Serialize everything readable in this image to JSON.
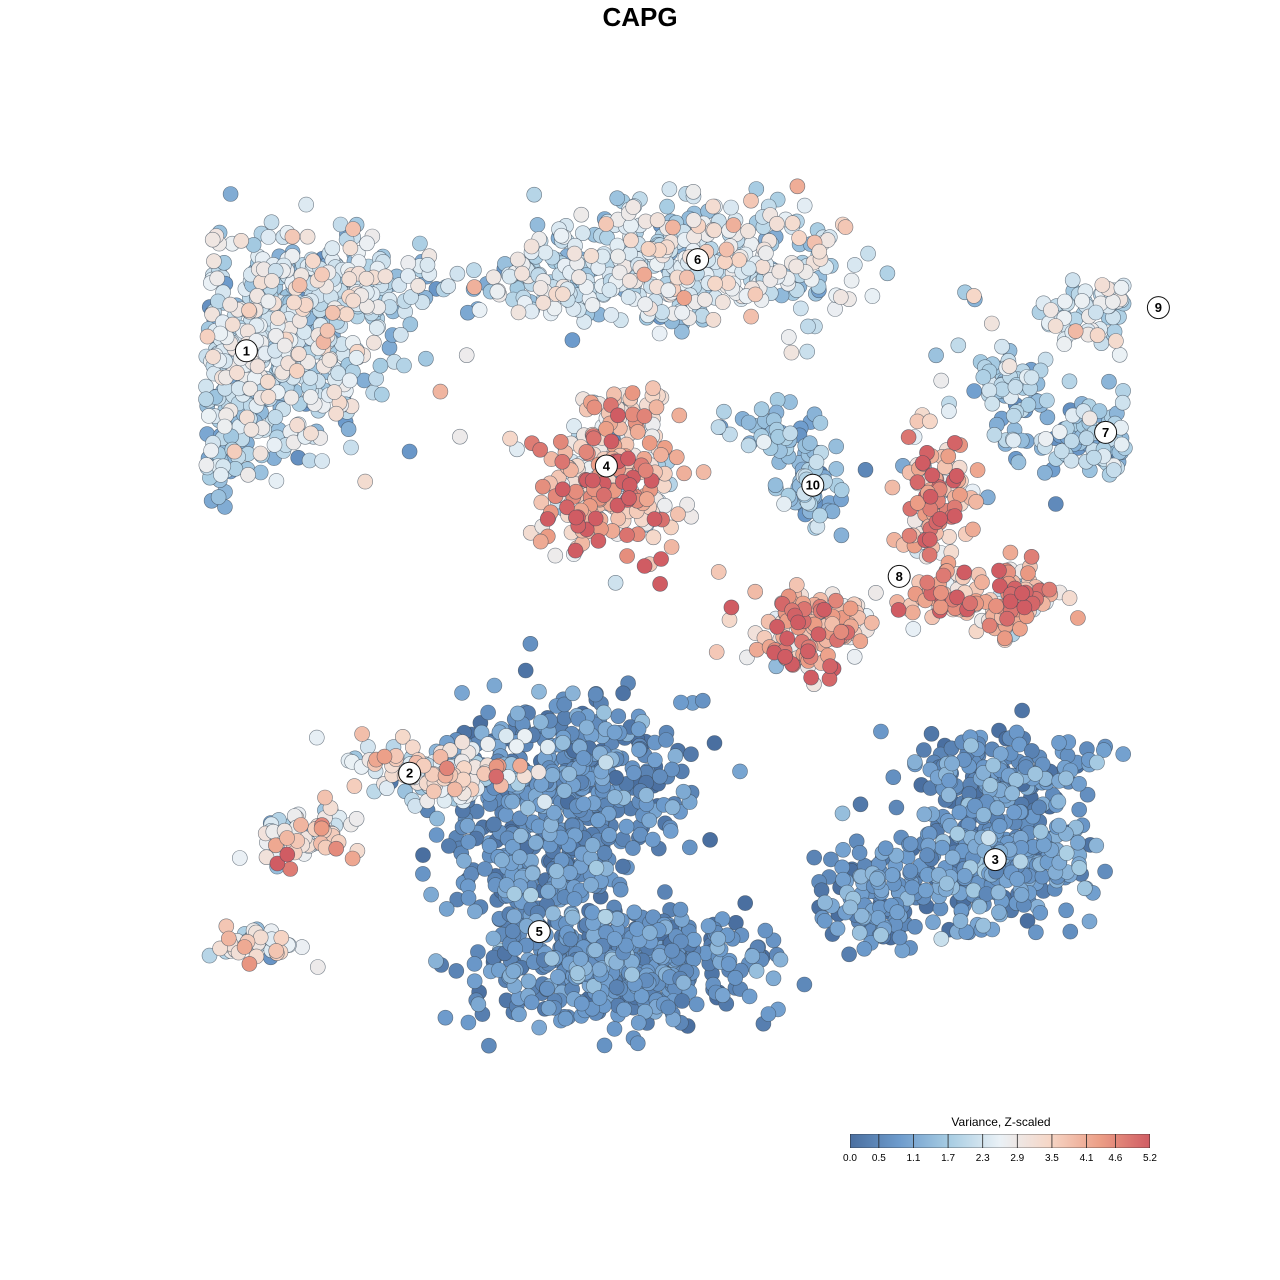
{
  "chart_data": {
    "type": "scatter",
    "title": "CAPG",
    "colorbar": {
      "title": "Variance, Z-scaled",
      "range": [
        0.0,
        5.2
      ],
      "ticks": [
        "0.0",
        "0.5",
        "1.1",
        "1.7",
        "2.3",
        "2.9",
        "3.5",
        "4.1",
        "4.6",
        "5.2"
      ],
      "colors": [
        "#4a6fa0",
        "#6e9ccd",
        "#a8cde3",
        "#eaf1f6",
        "#f6d6c6",
        "#ec9e86",
        "#d05c63"
      ]
    },
    "axes_visible": false,
    "grid": false,
    "legend_placement": "bottom-right",
    "clusters": [
      {
        "id": "1",
        "x": -8.2,
        "y": 5.4,
        "mean_value": 2.1
      },
      {
        "id": "2",
        "x": -4.8,
        "y": -3.4,
        "mean_value": 2.8
      },
      {
        "id": "3",
        "x": 7.4,
        "y": -5.2,
        "mean_value": 0.7
      },
      {
        "id": "4",
        "x": -0.7,
        "y": 3.0,
        "mean_value": 3.6
      },
      {
        "id": "5",
        "x": -2.1,
        "y": -6.7,
        "mean_value": 0.6
      },
      {
        "id": "6",
        "x": 1.2,
        "y": 7.3,
        "mean_value": 2.3
      },
      {
        "id": "7",
        "x": 9.7,
        "y": 3.7,
        "mean_value": 1.7
      },
      {
        "id": "8",
        "x": 5.4,
        "y": 0.7,
        "mean_value": 4.0
      },
      {
        "id": "9",
        "x": 10.8,
        "y": 6.3,
        "mean_value": 2.4
      },
      {
        "id": "10",
        "x": 3.6,
        "y": 2.6,
        "mean_value": 1.4
      }
    ]
  }
}
